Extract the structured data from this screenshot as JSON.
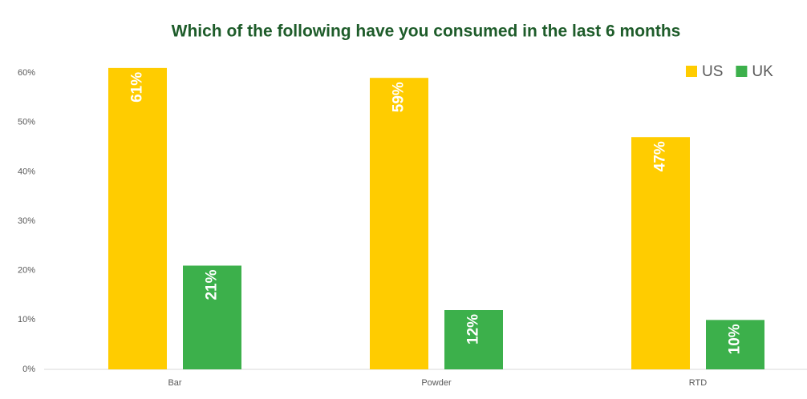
{
  "chart_data": {
    "type": "bar",
    "title": "Which of the following have you consumed in the last 6 months",
    "categories": [
      "Bar",
      "Powder",
      "RTD"
    ],
    "series": [
      {
        "name": "US",
        "color": "#ffcc00",
        "values": [
          61,
          59,
          47
        ],
        "value_labels": [
          "61%",
          "59%",
          "47%"
        ]
      },
      {
        "name": "UK",
        "color": "#3cb04b",
        "values": [
          21,
          12,
          10
        ],
        "value_labels": [
          "21%",
          "12%",
          "10%"
        ]
      }
    ],
    "ylim": [
      0,
      62
    ],
    "yticks": [
      {
        "value": 0,
        "label": "0%"
      },
      {
        "value": 10,
        "label": "10%"
      },
      {
        "value": 20,
        "label": "20%"
      },
      {
        "value": 30,
        "label": "30%"
      },
      {
        "value": 40,
        "label": "40%"
      },
      {
        "value": 50,
        "label": "50%"
      },
      {
        "value": 60,
        "label": "60%"
      }
    ],
    "legend": "top-right",
    "grid": false
  }
}
